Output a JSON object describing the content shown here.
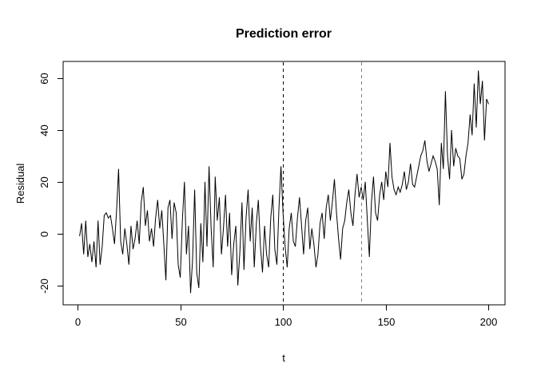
{
  "window": {
    "background": "#ffffff"
  },
  "chart_data": {
    "type": "line",
    "title": "Prediction error",
    "xlabel": "t",
    "ylabel": "Residual",
    "grid": false,
    "legend": "none",
    "line_color": "#000000",
    "x_start": 1,
    "x_step": 1,
    "x_ticks": [
      0,
      50,
      100,
      150,
      200
    ],
    "y_ticks": [
      -20,
      0,
      20,
      40,
      60
    ],
    "xlim": [
      -7,
      208
    ],
    "ylim": [
      -27.5,
      66.5
    ],
    "series": [
      {
        "name": "residuals",
        "values": [
          -1,
          4,
          -8,
          5,
          -9,
          -4,
          -11,
          -3,
          -13,
          5,
          -12,
          -5,
          7,
          8,
          6,
          7,
          2,
          -4,
          9,
          25,
          -3,
          -8,
          2,
          -4,
          -12,
          3,
          -6,
          -2,
          5,
          -4,
          12,
          18,
          3,
          9,
          -3,
          2,
          -5,
          6,
          13,
          2,
          9,
          -4,
          -18,
          10,
          13,
          -2,
          12,
          8,
          -12,
          -17,
          5,
          20,
          -8,
          3,
          -23,
          -10,
          17,
          -15,
          -21,
          4,
          -11,
          20,
          -5,
          26,
          2,
          -13,
          22,
          5,
          14,
          -8,
          2,
          15,
          -5,
          8,
          -16,
          -4,
          3,
          -20,
          -7,
          12,
          -14,
          6,
          17,
          -3,
          10,
          -13,
          4,
          13,
          -5,
          -15,
          3,
          -8,
          -13,
          6,
          15,
          -6,
          -12,
          10,
          26,
          8,
          -5,
          -13,
          2,
          8,
          -3,
          -5,
          6,
          14,
          3,
          -8,
          5,
          10,
          -6,
          2,
          -4,
          -13,
          -8,
          4,
          8,
          -2,
          10,
          15,
          5,
          12,
          21,
          8,
          -2,
          -10,
          2,
          5,
          12,
          17,
          8,
          3,
          15,
          23,
          14,
          18,
          13,
          20,
          5,
          -9,
          12,
          22,
          8,
          5,
          15,
          20,
          13,
          24,
          18,
          35,
          22,
          17,
          15,
          18,
          16,
          19,
          24,
          17,
          20,
          27,
          19,
          18,
          22,
          26,
          30,
          32,
          36,
          28,
          24,
          27,
          30,
          28,
          25,
          11,
          35,
          25,
          55,
          30,
          21,
          40,
          26,
          33,
          30,
          29,
          21,
          23,
          30,
          35,
          46,
          38,
          58,
          41,
          63,
          50,
          59,
          36,
          52,
          50
        ]
      }
    ],
    "vlines": [
      {
        "x": 100,
        "color": "#000000",
        "style": "dashed"
      },
      {
        "x": 138,
        "color": "#cd5c68",
        "style": "dashed"
      }
    ]
  }
}
